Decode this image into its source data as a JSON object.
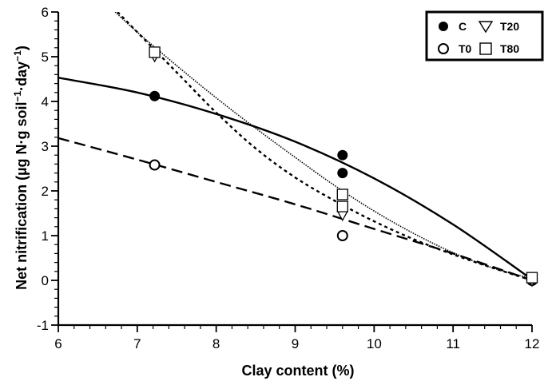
{
  "chart_data": {
    "type": "scatter",
    "xlabel": "Clay content  (%)",
    "ylabel_main": "Net nitrification (µg N·g soil",
    "ylabel_sup1": "−1",
    "ylabel_mid": "·day",
    "ylabel_sup2": "−1",
    "ylabel_close": ")",
    "xlim": [
      6,
      12
    ],
    "ylim": [
      -1,
      6
    ],
    "x_ticks": [
      "6",
      "7",
      "8",
      "9",
      "10",
      "11",
      "12"
    ],
    "y_ticks": [
      "-1",
      "0",
      "1",
      "2",
      "3",
      "4",
      "5",
      "6"
    ],
    "grid": false,
    "legend_position": "top-right",
    "series": [
      {
        "name": "C",
        "marker": "filled-circle",
        "points": [
          [
            7.22,
            4.12
          ],
          [
            9.6,
            2.8
          ],
          [
            9.6,
            2.4
          ],
          [
            12.0,
            0.02
          ]
        ],
        "fit": [
          [
            6.0,
            4.53
          ],
          [
            7.0,
            4.2
          ],
          [
            8.0,
            3.72
          ],
          [
            9.0,
            3.1
          ],
          [
            10.0,
            2.28
          ],
          [
            11.0,
            1.25
          ],
          [
            12.0,
            0.02
          ]
        ],
        "line_style": "solid"
      },
      {
        "name": "T0",
        "marker": "open-circle",
        "points": [
          [
            7.22,
            2.58
          ],
          [
            9.6,
            1.0
          ],
          [
            12.0,
            0.0
          ]
        ],
        "fit": [
          [
            6.0,
            3.18
          ],
          [
            7.0,
            2.7
          ],
          [
            8.0,
            2.2
          ],
          [
            9.0,
            1.7
          ],
          [
            10.0,
            1.15
          ],
          [
            11.0,
            0.6
          ],
          [
            12.0,
            0.0
          ]
        ],
        "line_style": "dashed"
      },
      {
        "name": "T20",
        "marker": "open-triangle",
        "points": [
          [
            7.22,
            5.0
          ],
          [
            9.6,
            1.45
          ],
          [
            12.0,
            -0.02
          ]
        ],
        "fit": [
          [
            6.75,
            6.0
          ],
          [
            7.0,
            5.55
          ],
          [
            7.5,
            4.65
          ],
          [
            8.0,
            3.75
          ],
          [
            8.5,
            2.95
          ],
          [
            9.0,
            2.3
          ],
          [
            9.5,
            1.78
          ],
          [
            10.0,
            1.32
          ],
          [
            10.5,
            0.92
          ],
          [
            11.0,
            0.58
          ],
          [
            11.5,
            0.28
          ],
          [
            12.0,
            0.0
          ]
        ],
        "line_style": "dotted"
      },
      {
        "name": "T80",
        "marker": "open-square",
        "points": [
          [
            7.22,
            5.1
          ],
          [
            9.6,
            1.92
          ],
          [
            9.6,
            1.65
          ],
          [
            12.0,
            0.06
          ]
        ],
        "fit": [
          [
            6.72,
            6.0
          ],
          [
            7.0,
            5.55
          ],
          [
            7.5,
            4.8
          ],
          [
            8.0,
            4.08
          ],
          [
            8.5,
            3.4
          ],
          [
            9.0,
            2.75
          ],
          [
            9.5,
            2.12
          ],
          [
            10.0,
            1.55
          ],
          [
            10.5,
            1.05
          ],
          [
            11.0,
            0.62
          ],
          [
            11.5,
            0.28
          ],
          [
            12.0,
            0.04
          ]
        ],
        "line_style": "fine-dotted"
      }
    ]
  }
}
